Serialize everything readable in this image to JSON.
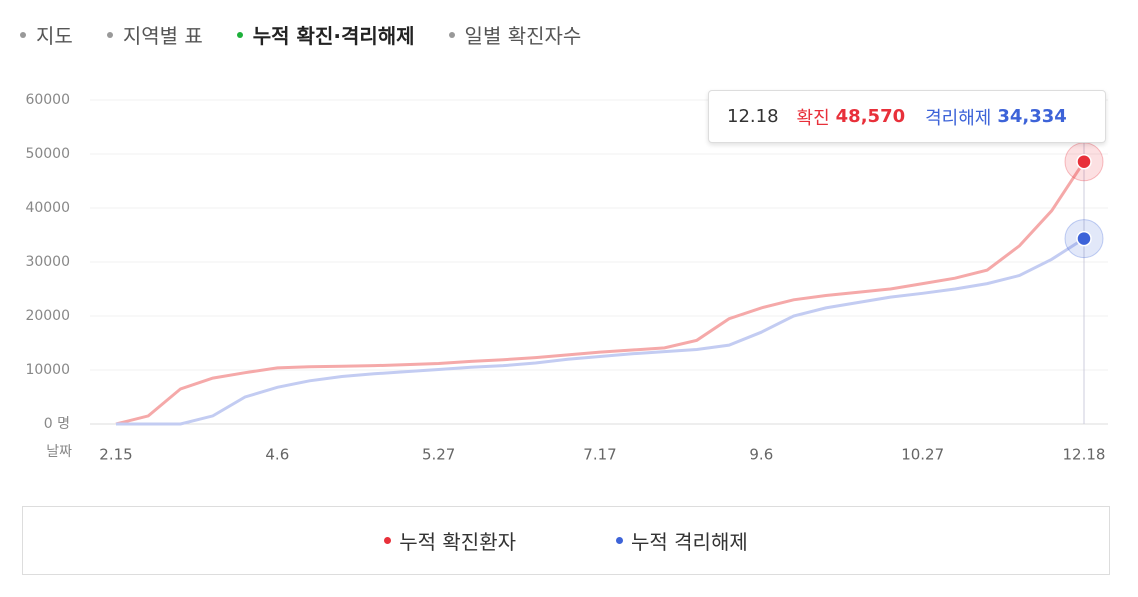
{
  "tabs": [
    "지도",
    "지역별 표",
    "누적 확진·격리해제",
    "일별 확진자수"
  ],
  "active_tab": 2,
  "chart_data": {
    "type": "line",
    "x_label": "날짜",
    "categories": [
      "2.15",
      null,
      null,
      null,
      null,
      "4.6",
      null,
      null,
      null,
      null,
      "5.27",
      null,
      null,
      null,
      null,
      "7.17",
      null,
      null,
      null,
      null,
      "9.6",
      null,
      null,
      null,
      null,
      "10.27",
      null,
      null,
      null,
      null,
      "12.18"
    ],
    "series": [
      {
        "name": "누적 확진환자",
        "color": "#e8303a",
        "line_color": "#f5a9a9",
        "values": [
          0,
          1500,
          6500,
          8500,
          9500,
          10400,
          10600,
          10700,
          10800,
          11000,
          11200,
          11600,
          11900,
          12300,
          12800,
          13300,
          13700,
          14100,
          15500,
          19500,
          21500,
          23000,
          23800,
          24400,
          25000,
          26000,
          27000,
          28500,
          33000,
          39500,
          48570
        ],
        "value_labels": [
          null,
          null,
          null,
          null,
          null,
          null,
          null,
          null,
          null,
          null,
          null,
          null,
          null,
          null,
          null,
          null,
          null,
          null,
          null,
          null,
          null,
          null,
          null,
          null,
          null,
          null,
          null,
          null,
          null,
          null,
          "48,570"
        ]
      },
      {
        "name": "누적 격리해제",
        "color": "#3d63d8",
        "line_color": "#c3ccf2",
        "values": [
          0,
          0,
          0,
          1500,
          5000,
          6800,
          8000,
          8800,
          9300,
          9700,
          10100,
          10500,
          10800,
          11300,
          12000,
          12500,
          13000,
          13400,
          13800,
          14600,
          17000,
          20000,
          21500,
          22500,
          23500,
          24200,
          25000,
          26000,
          27500,
          30500,
          34334
        ],
        "value_labels": [
          null,
          null,
          null,
          null,
          null,
          null,
          null,
          null,
          null,
          null,
          null,
          null,
          null,
          null,
          null,
          null,
          null,
          null,
          null,
          null,
          null,
          null,
          null,
          null,
          null,
          null,
          null,
          null,
          null,
          null,
          "34,334"
        ]
      }
    ],
    "tooltip_labels": [
      "확진",
      "격리해제"
    ],
    "ylim": [
      0,
      60000
    ],
    "yticks": [
      {
        "value": 0,
        "label": "0 명"
      },
      10000,
      20000,
      30000,
      40000,
      50000,
      60000
    ],
    "grid": true
  }
}
